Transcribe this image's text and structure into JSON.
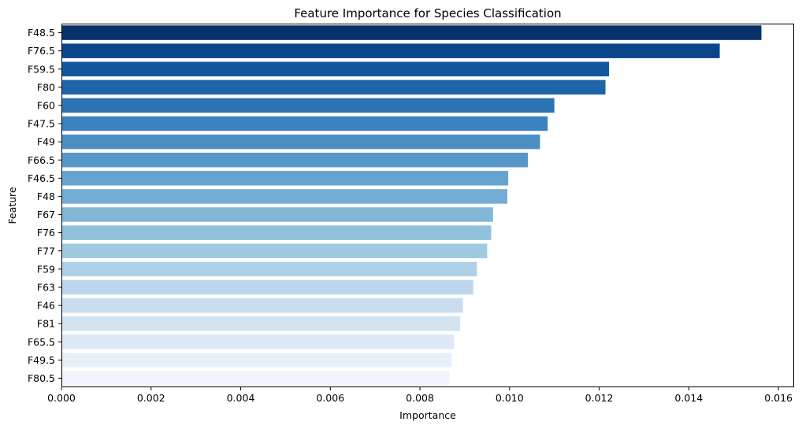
{
  "chart_data": {
    "type": "bar",
    "orientation": "horizontal",
    "title": "Feature Importance for Species Classification",
    "xlabel": "Importance",
    "ylabel": "Feature",
    "xlim": [
      0,
      0.01635
    ],
    "grid": false,
    "legend": "none",
    "x_ticks": [
      "0.000",
      "0.002",
      "0.004",
      "0.006",
      "0.008",
      "0.010",
      "0.012",
      "0.014",
      "0.016"
    ],
    "x_tick_values": [
      0,
      0.002,
      0.004,
      0.006,
      0.008,
      0.01,
      0.012,
      0.014,
      0.016
    ],
    "categories": [
      "F48.5",
      "F76.5",
      "F59.5",
      "F80",
      "F60",
      "F47.5",
      "F49",
      "F66.5",
      "F46.5",
      "F48",
      "F67",
      "F76",
      "F77",
      "F59",
      "F63",
      "F46",
      "F81",
      "F65.5",
      "F49.5",
      "F80.5"
    ],
    "values": [
      0.01562,
      0.01469,
      0.01222,
      0.01214,
      0.011,
      0.01085,
      0.01068,
      0.01041,
      0.00997,
      0.00995,
      0.00963,
      0.00959,
      0.0095,
      0.00927,
      0.00919,
      0.00896,
      0.0089,
      0.00876,
      0.00871,
      0.00866
    ],
    "colors": [
      "#08306b",
      "#0b468a",
      "#1157a0",
      "#1d64a9",
      "#2b73b2",
      "#3a82bd",
      "#4a90c5",
      "#5898c9",
      "#66a4d0",
      "#73add3",
      "#82b7d8",
      "#92c1dc",
      "#a0cae1",
      "#afd1e7",
      "#bcd7eb",
      "#c9ddef",
      "#d3e3f2",
      "#dde9f6",
      "#e6f0f9",
      "#eff4fc"
    ]
  }
}
